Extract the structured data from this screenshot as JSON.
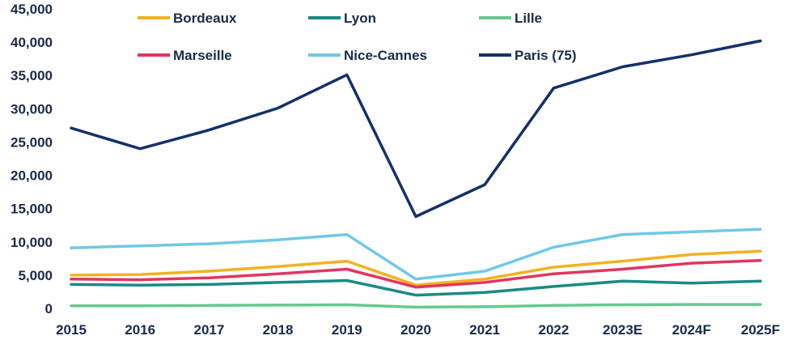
{
  "chart_data": {
    "type": "line",
    "title": "",
    "xlabel": "",
    "ylabel": "",
    "categories": [
      "2015",
      "2016",
      "2017",
      "2018",
      "2019",
      "2020",
      "2021",
      "2022",
      "2023E",
      "2024F",
      "2025F"
    ],
    "ylim": [
      0,
      45000
    ],
    "yticks": [
      0,
      5000,
      10000,
      15000,
      20000,
      25000,
      30000,
      35000,
      40000,
      45000
    ],
    "ytick_labels": [
      "0",
      "5,000",
      "10,000",
      "15,000",
      "20,000",
      "25,000",
      "30,000",
      "35,000",
      "40,000",
      "45,000"
    ],
    "grid": false,
    "legend_position": "top",
    "series": [
      {
        "name": "Bordeaux",
        "color": "#f2b21f",
        "values": [
          5000,
          5100,
          5600,
          6300,
          7100,
          3500,
          4400,
          6200,
          7100,
          8100,
          8600
        ]
      },
      {
        "name": "Lyon",
        "color": "#1a8a85",
        "values": [
          3600,
          3500,
          3600,
          3900,
          4200,
          2000,
          2400,
          3300,
          4100,
          3800,
          4100
        ]
      },
      {
        "name": "Lille",
        "color": "#66c98d",
        "values": [
          400,
          400,
          450,
          500,
          550,
          200,
          250,
          450,
          550,
          600,
          600
        ]
      },
      {
        "name": "Marseille",
        "color": "#e0365f",
        "values": [
          4400,
          4300,
          4600,
          5200,
          5900,
          3200,
          3900,
          5200,
          5900,
          6800,
          7200
        ]
      },
      {
        "name": "Nice-Cannes",
        "color": "#6fc8e8",
        "values": [
          9100,
          9400,
          9700,
          10300,
          11100,
          4400,
          5600,
          9200,
          11100,
          11500,
          11900
        ]
      },
      {
        "name": "Paris (75)",
        "color": "#13306a",
        "values": [
          27100,
          24000,
          26800,
          30100,
          35100,
          13800,
          18600,
          33100,
          36300,
          38100,
          40200
        ]
      }
    ]
  }
}
